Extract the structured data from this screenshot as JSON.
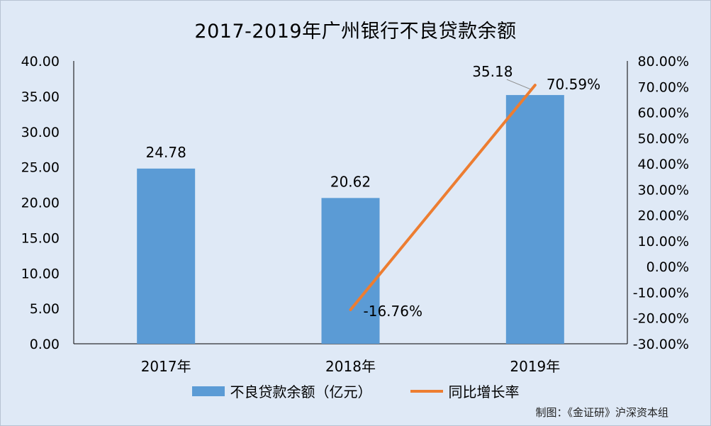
{
  "chart_data": {
    "type": "bar",
    "title": "2017-2019年广州银行不良贷款余额",
    "categories": [
      "2017年",
      "2018年",
      "2019年"
    ],
    "series": [
      {
        "name": "不良贷款余额（亿元）",
        "kind": "bar",
        "axis": "left",
        "color": "#5b9bd5",
        "values": [
          24.78,
          20.62,
          35.18
        ],
        "labels": [
          "24.78",
          "20.62",
          "35.18"
        ]
      },
      {
        "name": "同比增长率",
        "kind": "line",
        "axis": "right",
        "color": "#ed7d31",
        "values": [
          null,
          -16.76,
          70.59
        ],
        "labels": [
          "",
          "-16.76%",
          "70.59%"
        ]
      }
    ],
    "left_axis": {
      "ylim": [
        0,
        40
      ],
      "ticks": [
        "0.00",
        "5.00",
        "10.00",
        "15.00",
        "20.00",
        "25.00",
        "30.00",
        "35.00",
        "40.00"
      ]
    },
    "right_axis": {
      "ylim": [
        -30,
        80
      ],
      "ticks": [
        "-30.00%",
        "-20.00%",
        "-10.00%",
        "0.00%",
        "10.00%",
        "20.00%",
        "30.00%",
        "40.00%",
        "50.00%",
        "60.00%",
        "70.00%",
        "80.00%"
      ]
    },
    "grid": false,
    "legend_position": "bottom"
  },
  "source_note": "制图：《金证研》沪深资本组"
}
